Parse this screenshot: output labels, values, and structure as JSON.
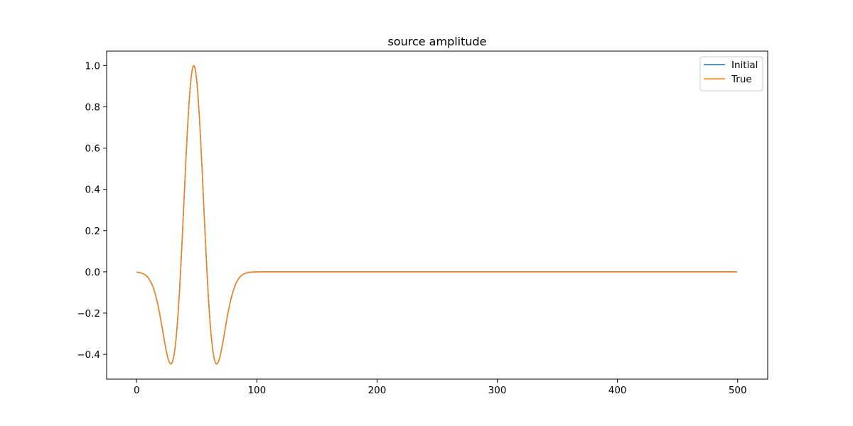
{
  "chart_data": {
    "type": "line",
    "title": "source amplitude",
    "xlabel": "",
    "ylabel": "",
    "xlim": [
      -25,
      525
    ],
    "ylim": [
      -0.52,
      1.07
    ],
    "xticks": [
      0,
      100,
      200,
      300,
      400,
      500
    ],
    "xtick_labels": [
      "0",
      "100",
      "200",
      "300",
      "400",
      "500"
    ],
    "yticks": [
      -0.4,
      -0.2,
      0.0,
      0.2,
      0.4,
      0.6,
      0.8,
      1.0
    ],
    "ytick_labels": [
      "−0.4",
      "−0.2",
      "0.0",
      "0.2",
      "0.4",
      "0.6",
      "0.8",
      "1.0"
    ],
    "grid": false,
    "legend_position": "upper right",
    "wavelet": {
      "kind": "ricker",
      "peak_x": 47.5,
      "sigma": 11.0,
      "n_samples": 500,
      "peak_value": 1.0,
      "trough_value": -0.446
    },
    "x": [
      0,
      10,
      20,
      25,
      30,
      35,
      40,
      45,
      47.5,
      50,
      55,
      60,
      65,
      70,
      75,
      80,
      90,
      100,
      200,
      300,
      400,
      499
    ],
    "series": [
      {
        "name": "Initial",
        "color": "#1f77b4",
        "values": [
          0.0,
          -0.057,
          -0.363,
          -0.431,
          -0.417,
          -0.066,
          0.585,
          0.974,
          1.0,
          0.974,
          0.585,
          -0.066,
          -0.417,
          -0.431,
          -0.363,
          -0.057,
          -0.057,
          -0.001,
          0.0,
          0.0,
          0.0,
          0.0
        ]
      },
      {
        "name": "True",
        "color": "#ff7f0e",
        "values": [
          0.0,
          -0.057,
          -0.363,
          -0.431,
          -0.417,
          -0.066,
          0.585,
          0.974,
          1.0,
          0.974,
          0.585,
          -0.066,
          -0.417,
          -0.431,
          -0.363,
          -0.057,
          -0.057,
          -0.001,
          0.0,
          0.0,
          0.0,
          0.0
        ]
      }
    ]
  }
}
